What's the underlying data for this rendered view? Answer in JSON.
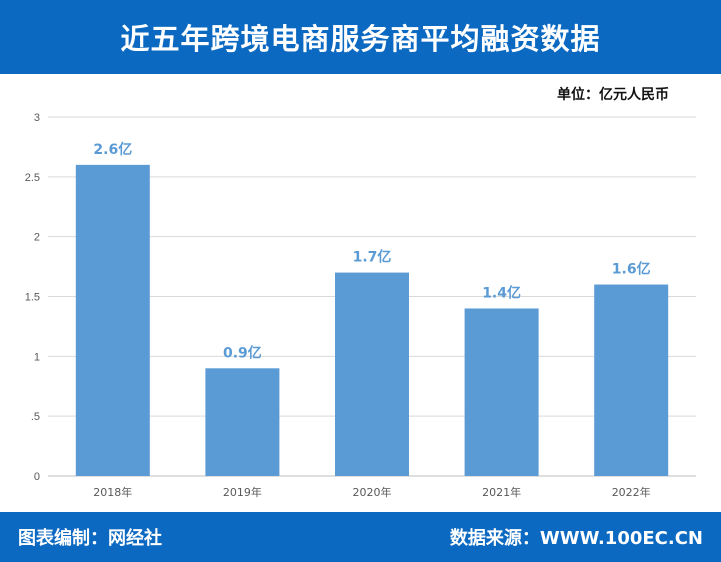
{
  "header": {
    "title": "近五年跨境电商服务商平均融资数据"
  },
  "unit_label": "单位：亿元人民币",
  "footer": {
    "left": "图表编制：网经社",
    "right": "数据来源：WWW.100EC.CN"
  },
  "colors": {
    "header_bg": "#0b69c1",
    "bar": "#5b9bd5",
    "label": "#5b9bd5"
  },
  "chart_data": {
    "type": "bar",
    "title": "近五年跨境电商服务商平均融资数据",
    "categories": [
      "2018年",
      "2019年",
      "2020年",
      "2021年",
      "2022年"
    ],
    "values": [
      2.6,
      0.9,
      1.7,
      1.4,
      1.6
    ],
    "data_labels": [
      "2.6亿",
      "0.9亿",
      "1.7亿",
      "1.4亿",
      "1.6亿"
    ],
    "y_ticks": [
      "0",
      ".5",
      "1",
      "1.5",
      "2",
      "2.5",
      "3"
    ],
    "ylim": [
      0,
      3
    ],
    "unit": "亿元人民币",
    "grid": true
  }
}
